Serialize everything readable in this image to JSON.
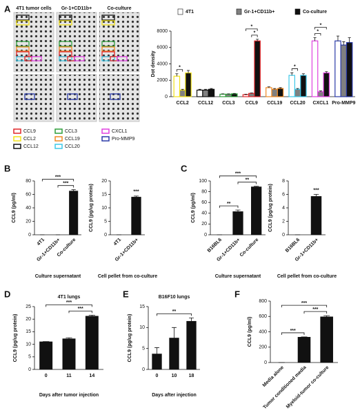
{
  "blot_panel": {
    "panel": "A",
    "columns": [
      "4T1 tumor cells",
      "Gr-1+CD11b+",
      "Co-culture"
    ],
    "legend": [
      {
        "label": "CCL9",
        "color": "#e0262a"
      },
      {
        "label": "CCL2",
        "color": "#f2e21a"
      },
      {
        "label": "CCL12",
        "color": "#111111"
      },
      {
        "label": "CCL3",
        "color": "#2e9e3a"
      },
      {
        "label": "CCL19",
        "color": "#f08a24"
      },
      {
        "label": "CCL20",
        "color": "#3cc8e8"
      },
      {
        "label": "CXCL1",
        "color": "#e040e0"
      },
      {
        "label": "Pro-MMP9",
        "color": "#2a3aa8"
      }
    ]
  },
  "chart_data": [
    {
      "type": "bar",
      "ylabel": "Dot density",
      "legend": "top",
      "categories": [
        "CCL2",
        "CCL12",
        "CCL3",
        "CCL9",
        "CCL19",
        "CCL20",
        "CXCL1",
        "Pro-MMP9"
      ],
      "category_colors": [
        "#f2e21a",
        "#111111",
        "#2e9e3a",
        "#e0262a",
        "#f08a24",
        "#3cc8e8",
        "#e040e0",
        "#2a3aa8"
      ],
      "series": [
        {
          "name": "4T1",
          "color": "#ffffff",
          "values": [
            2500,
            800,
            300,
            250,
            1100,
            2600,
            6800,
            6800
          ],
          "errors": [
            300,
            100,
            50,
            50,
            100,
            300,
            400,
            600
          ]
        },
        {
          "name": "Gr-1+CD11b+",
          "color": "#808080",
          "values": [
            800,
            800,
            300,
            400,
            900,
            900,
            600,
            6300
          ],
          "errors": [
            100,
            100,
            50,
            50,
            100,
            100,
            100,
            400
          ]
        },
        {
          "name": "Co-culture",
          "color": "#111111",
          "values": [
            2900,
            900,
            350,
            6800,
            1000,
            2600,
            2900,
            6600
          ],
          "errors": [
            300,
            100,
            50,
            200,
            100,
            200,
            150,
            600
          ]
        }
      ],
      "ylim": [
        0,
        8000
      ],
      "yticks": [
        0,
        2000,
        4000,
        6000,
        8000
      ],
      "brackets": [
        {
          "label": "*",
          "category": "CCL2",
          "from": "4T1",
          "to": "Gr-1+CD11b+"
        },
        {
          "label": "*",
          "category": "CCL9",
          "from": "Gr-1+CD11b+",
          "to": "Co-culture"
        },
        {
          "label": "*",
          "category": "CCL9",
          "from": "4T1",
          "to": "Co-culture"
        },
        {
          "label": "*",
          "category": "CCL20",
          "from": "4T1",
          "to": "Gr-1+CD11b+"
        },
        {
          "label": "*",
          "category": "CXCL1",
          "from": "4T1",
          "to": "Gr-1+CD11b+"
        },
        {
          "label": "*",
          "category": "CXCL1",
          "from": "4T1",
          "to": "Co-culture"
        }
      ]
    },
    {
      "type": "bar",
      "panel": "B",
      "ylabel": "CCL9 (pg/ml)",
      "xlabel": "Culture supernatant",
      "rotate_labels": true,
      "categories": [
        "4T1",
        "Gr-1+CD11b+",
        "Co-culture"
      ],
      "values": [
        0,
        0,
        65
      ],
      "errors": [
        0,
        0,
        2
      ],
      "color": "#111111",
      "ylim": [
        0,
        80
      ],
      "yticks": [
        0,
        20,
        40,
        60,
        80
      ],
      "brackets": [
        {
          "label": "***",
          "from": "Gr-1+CD11b+",
          "to": "Co-culture"
        },
        {
          "label": "***",
          "from": "4T1",
          "to": "Co-culture"
        }
      ]
    },
    {
      "type": "bar",
      "ylabel": "CCL9 (pg/ug protein)",
      "xlabel": "Cell pellet from co-culture",
      "rotate_labels": true,
      "categories": [
        "4T1",
        "Gr-1+CD11b+"
      ],
      "values": [
        0,
        14
      ],
      "errors": [
        0,
        0.4
      ],
      "color": "#111111",
      "ylim": [
        0,
        20
      ],
      "yticks": [
        0,
        5,
        10,
        15,
        20
      ],
      "bar_labels": [
        "",
        "***"
      ]
    },
    {
      "type": "bar",
      "panel": "C",
      "ylabel": "CCL9 (pg/ml)",
      "xlabel": "Culture supernatant",
      "rotate_labels": true,
      "categories": [
        "B16BL6",
        "Gr-1+CD11b+",
        "Co-culture"
      ],
      "values": [
        0,
        43,
        89
      ],
      "errors": [
        0,
        3,
        1
      ],
      "color": "#111111",
      "ylim": [
        0,
        100
      ],
      "yticks": [
        0,
        20,
        40,
        60,
        80,
        100
      ],
      "brackets": [
        {
          "label": "**",
          "from": "B16BL6",
          "to": "Gr-1+CD11b+"
        },
        {
          "label": "**",
          "from": "Gr-1+CD11b+",
          "to": "Co-culture"
        },
        {
          "label": "***",
          "from": "B16BL6",
          "to": "Co-culture"
        }
      ]
    },
    {
      "type": "bar",
      "ylabel": "CCL9 (pg/ug protein)",
      "xlabel": "Cell pellet from co-culture",
      "rotate_labels": true,
      "categories": [
        "B16BL6",
        "Gr-1+CD11b+"
      ],
      "values": [
        0,
        5.7
      ],
      "errors": [
        0,
        0.3
      ],
      "color": "#111111",
      "ylim": [
        0,
        8
      ],
      "yticks": [
        0,
        2,
        4,
        6,
        8
      ],
      "bar_labels": [
        "",
        "***"
      ]
    },
    {
      "type": "bar",
      "panel": "D",
      "title": "4T1 lungs",
      "ylabel": "CCL9 (pg/ug protein)",
      "xlabel": "Days after tumor injection",
      "categories": [
        "0",
        "11",
        "14"
      ],
      "values": [
        11,
        12.2,
        21.2
      ],
      "errors": [
        0.1,
        0.4,
        0.4
      ],
      "color": "#111111",
      "ylim": [
        0,
        25
      ],
      "yticks": [
        0,
        5,
        10,
        15,
        20,
        25
      ],
      "brackets": [
        {
          "label": "***",
          "from": "11",
          "to": "14"
        },
        {
          "label": "***",
          "from": "0",
          "to": "14"
        }
      ]
    },
    {
      "type": "bar",
      "panel": "E",
      "title": "B16F10 lungs",
      "ylabel": "CCL9 (pg/ug protein)",
      "xlabel": "Days after injection",
      "categories": [
        "0",
        "10",
        "18"
      ],
      "values": [
        3.7,
        7.5,
        11.5
      ],
      "errors": [
        1.5,
        2.5,
        0.8
      ],
      "color": "#111111",
      "ylim": [
        0,
        15
      ],
      "yticks": [
        0,
        5,
        10,
        15
      ],
      "brackets": [
        {
          "label": "**",
          "from": "0",
          "to": "18"
        }
      ]
    },
    {
      "type": "bar",
      "panel": "F",
      "ylabel": "CCL9 (pg/ml)",
      "rotate_labels": true,
      "categories": [
        "Media alone",
        "Tumor conditioned media",
        "Myeloid-tumor co-culture"
      ],
      "values": [
        0,
        330,
        595
      ],
      "errors": [
        0,
        3,
        15
      ],
      "color": "#111111",
      "ylim": [
        0,
        800
      ],
      "yticks": [
        0,
        200,
        400,
        600,
        800
      ],
      "brackets": [
        {
          "label": "***",
          "from": "Media alone",
          "to": "Tumor conditioned media"
        },
        {
          "label": "***",
          "from": "Tumor conditioned media",
          "to": "Myeloid-tumor co-culture"
        },
        {
          "label": "***",
          "from": "Media alone",
          "to": "Myeloid-tumor co-culture"
        }
      ]
    }
  ]
}
